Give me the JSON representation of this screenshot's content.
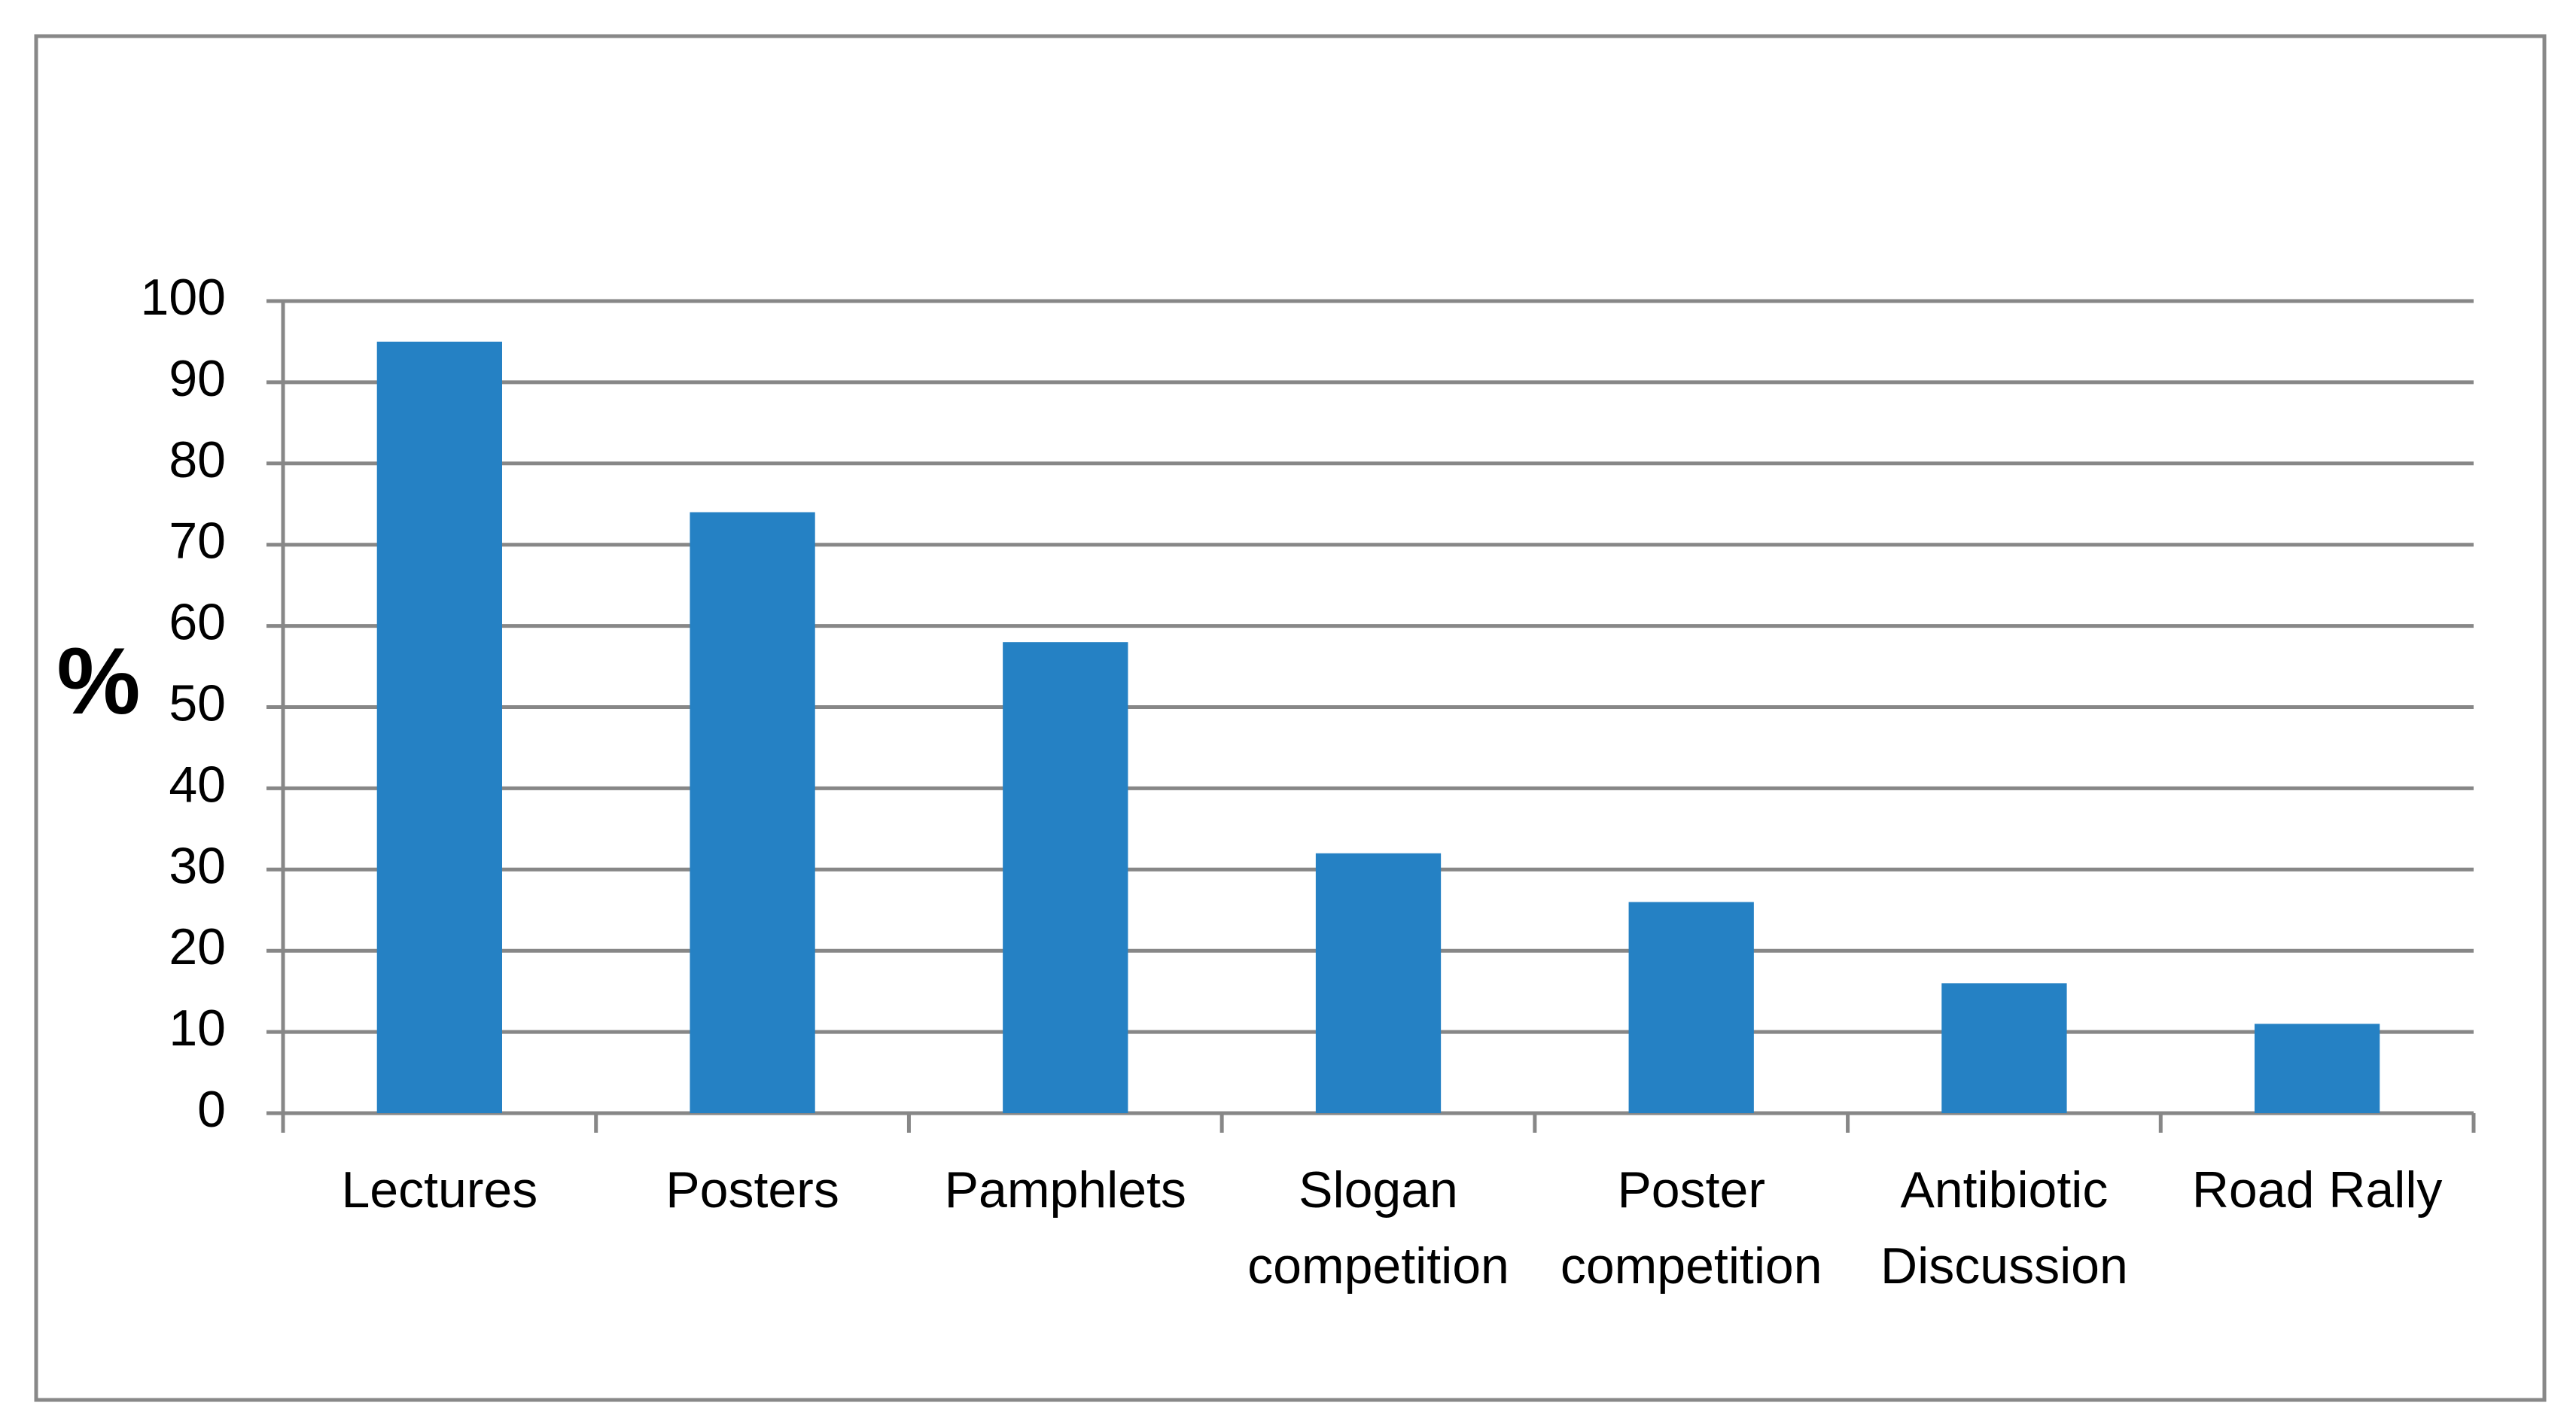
{
  "chart_data": {
    "type": "bar",
    "y_label": "%",
    "categories": [
      "Lectures",
      "Posters",
      "Pamphlets",
      "Slogan\ncompetition",
      "Poster\ncompetition",
      "Antibiotic\nDiscussion",
      "Road Rally"
    ],
    "values": [
      95,
      74,
      58,
      32,
      26,
      16,
      11
    ],
    "color": "#2581c4",
    "ylim": [
      0,
      100
    ],
    "yticks": [
      0,
      10,
      20,
      30,
      40,
      50,
      60,
      70,
      80,
      90,
      100
    ],
    "grid": true
  }
}
